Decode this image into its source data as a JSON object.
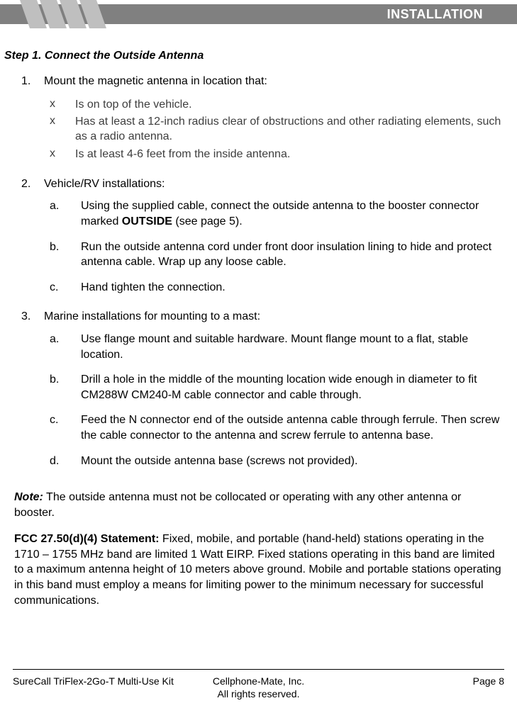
{
  "header": {
    "title": "INSTALLATION"
  },
  "chevrons": {
    "count": 4,
    "fill": "#bfbfbf",
    "width": 24,
    "height": 40,
    "slant": 14,
    "gap": 4
  },
  "step": {
    "title": "Step 1. Connect the Outside Antenna"
  },
  "items": {
    "n1": {
      "label": "1.",
      "text": "Mount the magnetic antenna in location that:"
    },
    "b1": {
      "x": "x",
      "text": "Is on top of the vehicle."
    },
    "b2": {
      "x": "x",
      "text": "Has at least a 12-inch radius clear of obstructions and other radiating elements, such as a radio antenna."
    },
    "b3": {
      "x": "x",
      "text": "Is at least 4-6 feet from the inside antenna."
    },
    "n2": {
      "label": "2.",
      "text": "Vehicle/RV installations:"
    },
    "a2a": {
      "label": "a.",
      "pre": "Using the supplied cable, connect the outside antenna to the booster connector marked ",
      "bold": "OUTSIDE",
      "post": " (see page 5)."
    },
    "a2b": {
      "label": "b.",
      "text": "Run the outside antenna cord under front door insulation lining to hide and protect antenna cable. Wrap up any loose cable."
    },
    "a2c": {
      "label": "c.",
      "text": "Hand tighten the connection."
    },
    "n3": {
      "label": "3.",
      "text": "Marine installations for mounting to a mast:"
    },
    "a3a": {
      "label": "a.",
      "text": "Use flange mount and suitable hardware. Mount flange mount to a flat, stable location."
    },
    "a3b": {
      "label": "b.",
      "text": "Drill a hole in the middle of the mounting location wide enough in diameter to fit CM288W CM240-M cable connector and cable through."
    },
    "a3c": {
      "label": "c.",
      "text": "Feed the N connector end of the outside antenna cable through ferrule. Then screw the cable connector to the antenna and screw ferrule to antenna base."
    },
    "a3d": {
      "label": "d.",
      "text": "Mount the outside antenna base (screws not provided)."
    }
  },
  "note": {
    "bold": "Note:",
    "text": " The outside antenna must not be collocated or operating with any other antenna or booster."
  },
  "fcc": {
    "bold": "FCC 27.50(d)(4) Statement:",
    "text": " Fixed, mobile, and portable (hand-held) stations operating in the 1710 – 1755 MHz band are limited 1 Watt EIRP. Fixed stations operating in this band are limited to a maximum antenna height of 10 meters above ground. Mobile and portable stations operating in this band must employ a means for limiting power to the minimum necessary for successful communications."
  },
  "footer": {
    "left": "SureCall TriFlex-2Go-T Multi-Use Kit",
    "center": "Cellphone-Mate, Inc.",
    "right": "Page 8",
    "bottom": "All rights reserved."
  }
}
